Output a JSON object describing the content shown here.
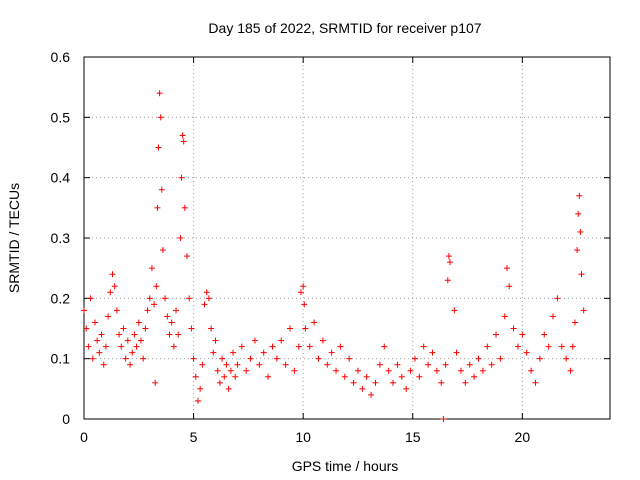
{
  "chart_data": {
    "type": "scatter",
    "title": "Day 185 of 2022, SRMTID for receiver p107",
    "xlabel": "GPS time / hours",
    "ylabel": "SRMTID / TECUs",
    "xlim": [
      0,
      24
    ],
    "ylim": [
      0,
      0.6
    ],
    "xticks": [
      0,
      5,
      10,
      15,
      20
    ],
    "yticks": [
      0,
      0.1,
      0.2,
      0.3,
      0.4,
      0.5,
      0.6
    ],
    "xtick_labels": [
      "0",
      "5",
      "10",
      "15",
      "20"
    ],
    "ytick_labels": [
      "0",
      "0.1",
      "0.2",
      "0.3",
      "0.4",
      "0.5",
      "0.6"
    ],
    "grid": true,
    "marker": "+",
    "color": "#ff0000",
    "series": [
      {
        "name": "SRMTID",
        "points": [
          [
            0.0,
            0.18
          ],
          [
            0.1,
            0.15
          ],
          [
            0.2,
            0.12
          ],
          [
            0.3,
            0.2
          ],
          [
            0.4,
            0.1
          ],
          [
            0.5,
            0.16
          ],
          [
            0.6,
            0.13
          ],
          [
            0.7,
            0.11
          ],
          [
            0.8,
            0.14
          ],
          [
            0.9,
            0.09
          ],
          [
            1.0,
            0.12
          ],
          [
            1.1,
            0.17
          ],
          [
            1.2,
            0.21
          ],
          [
            1.3,
            0.24
          ],
          [
            1.4,
            0.22
          ],
          [
            1.5,
            0.18
          ],
          [
            1.6,
            0.14
          ],
          [
            1.7,
            0.12
          ],
          [
            1.8,
            0.15
          ],
          [
            1.9,
            0.1
          ],
          [
            2.0,
            0.13
          ],
          [
            2.1,
            0.09
          ],
          [
            2.2,
            0.11
          ],
          [
            2.3,
            0.14
          ],
          [
            2.4,
            0.12
          ],
          [
            2.5,
            0.16
          ],
          [
            2.6,
            0.13
          ],
          [
            2.7,
            0.1
          ],
          [
            2.8,
            0.15
          ],
          [
            2.9,
            0.18
          ],
          [
            3.0,
            0.2
          ],
          [
            3.1,
            0.25
          ],
          [
            3.2,
            0.19
          ],
          [
            3.25,
            0.06
          ],
          [
            3.3,
            0.22
          ],
          [
            3.35,
            0.35
          ],
          [
            3.4,
            0.45
          ],
          [
            3.45,
            0.54
          ],
          [
            3.5,
            0.5
          ],
          [
            3.55,
            0.38
          ],
          [
            3.6,
            0.28
          ],
          [
            3.7,
            0.2
          ],
          [
            3.8,
            0.17
          ],
          [
            3.9,
            0.14
          ],
          [
            4.0,
            0.16
          ],
          [
            4.1,
            0.12
          ],
          [
            4.2,
            0.18
          ],
          [
            4.3,
            0.14
          ],
          [
            4.4,
            0.3
          ],
          [
            4.45,
            0.4
          ],
          [
            4.5,
            0.47
          ],
          [
            4.55,
            0.46
          ],
          [
            4.6,
            0.35
          ],
          [
            4.7,
            0.27
          ],
          [
            4.8,
            0.2
          ],
          [
            4.9,
            0.15
          ],
          [
            5.0,
            0.1
          ],
          [
            5.1,
            0.07
          ],
          [
            5.2,
            0.03
          ],
          [
            5.3,
            0.05
          ],
          [
            5.4,
            0.09
          ],
          [
            5.5,
            0.19
          ],
          [
            5.6,
            0.21
          ],
          [
            5.7,
            0.2
          ],
          [
            5.8,
            0.15
          ],
          [
            5.9,
            0.11
          ],
          [
            6.0,
            0.13
          ],
          [
            6.1,
            0.08
          ],
          [
            6.2,
            0.06
          ],
          [
            6.3,
            0.1
          ],
          [
            6.4,
            0.07
          ],
          [
            6.5,
            0.09
          ],
          [
            6.6,
            0.05
          ],
          [
            6.7,
            0.08
          ],
          [
            6.8,
            0.11
          ],
          [
            6.9,
            0.07
          ],
          [
            7.0,
            0.09
          ],
          [
            7.2,
            0.12
          ],
          [
            7.4,
            0.08
          ],
          [
            7.6,
            0.1
          ],
          [
            7.8,
            0.13
          ],
          [
            8.0,
            0.09
          ],
          [
            8.2,
            0.11
          ],
          [
            8.4,
            0.07
          ],
          [
            8.6,
            0.12
          ],
          [
            8.8,
            0.1
          ],
          [
            9.0,
            0.13
          ],
          [
            9.2,
            0.09
          ],
          [
            9.4,
            0.15
          ],
          [
            9.6,
            0.08
          ],
          [
            9.8,
            0.12
          ],
          [
            9.9,
            0.21
          ],
          [
            10.0,
            0.22
          ],
          [
            10.05,
            0.19
          ],
          [
            10.1,
            0.15
          ],
          [
            10.3,
            0.12
          ],
          [
            10.5,
            0.16
          ],
          [
            10.7,
            0.1
          ],
          [
            10.9,
            0.13
          ],
          [
            11.1,
            0.09
          ],
          [
            11.3,
            0.11
          ],
          [
            11.5,
            0.08
          ],
          [
            11.7,
            0.12
          ],
          [
            11.9,
            0.07
          ],
          [
            12.1,
            0.1
          ],
          [
            12.3,
            0.06
          ],
          [
            12.5,
            0.08
          ],
          [
            12.7,
            0.05
          ],
          [
            12.9,
            0.07
          ],
          [
            13.1,
            0.04
          ],
          [
            13.3,
            0.06
          ],
          [
            13.5,
            0.09
          ],
          [
            13.7,
            0.12
          ],
          [
            13.9,
            0.08
          ],
          [
            14.1,
            0.06
          ],
          [
            14.3,
            0.09
          ],
          [
            14.5,
            0.07
          ],
          [
            14.7,
            0.05
          ],
          [
            14.9,
            0.08
          ],
          [
            15.1,
            0.1
          ],
          [
            15.3,
            0.07
          ],
          [
            15.5,
            0.12
          ],
          [
            15.7,
            0.09
          ],
          [
            15.9,
            0.11
          ],
          [
            16.1,
            0.08
          ],
          [
            16.3,
            0.06
          ],
          [
            16.4,
            0.0
          ],
          [
            16.5,
            0.09
          ],
          [
            16.6,
            0.23
          ],
          [
            16.65,
            0.27
          ],
          [
            16.7,
            0.26
          ],
          [
            16.9,
            0.18
          ],
          [
            17.0,
            0.11
          ],
          [
            17.2,
            0.08
          ],
          [
            17.4,
            0.06
          ],
          [
            17.6,
            0.09
          ],
          [
            17.8,
            0.07
          ],
          [
            18.0,
            0.1
          ],
          [
            18.2,
            0.08
          ],
          [
            18.4,
            0.12
          ],
          [
            18.6,
            0.09
          ],
          [
            18.8,
            0.14
          ],
          [
            19.0,
            0.1
          ],
          [
            19.2,
            0.17
          ],
          [
            19.3,
            0.25
          ],
          [
            19.4,
            0.22
          ],
          [
            19.6,
            0.15
          ],
          [
            19.8,
            0.12
          ],
          [
            20.0,
            0.14
          ],
          [
            20.2,
            0.11
          ],
          [
            20.4,
            0.08
          ],
          [
            20.6,
            0.06
          ],
          [
            20.8,
            0.1
          ],
          [
            21.0,
            0.14
          ],
          [
            21.2,
            0.12
          ],
          [
            21.4,
            0.17
          ],
          [
            21.6,
            0.2
          ],
          [
            21.8,
            0.12
          ],
          [
            22.0,
            0.1
          ],
          [
            22.2,
            0.08
          ],
          [
            22.3,
            0.12
          ],
          [
            22.4,
            0.16
          ],
          [
            22.5,
            0.28
          ],
          [
            22.55,
            0.34
          ],
          [
            22.6,
            0.37
          ],
          [
            22.65,
            0.31
          ],
          [
            22.7,
            0.24
          ],
          [
            22.8,
            0.18
          ]
        ]
      }
    ]
  }
}
